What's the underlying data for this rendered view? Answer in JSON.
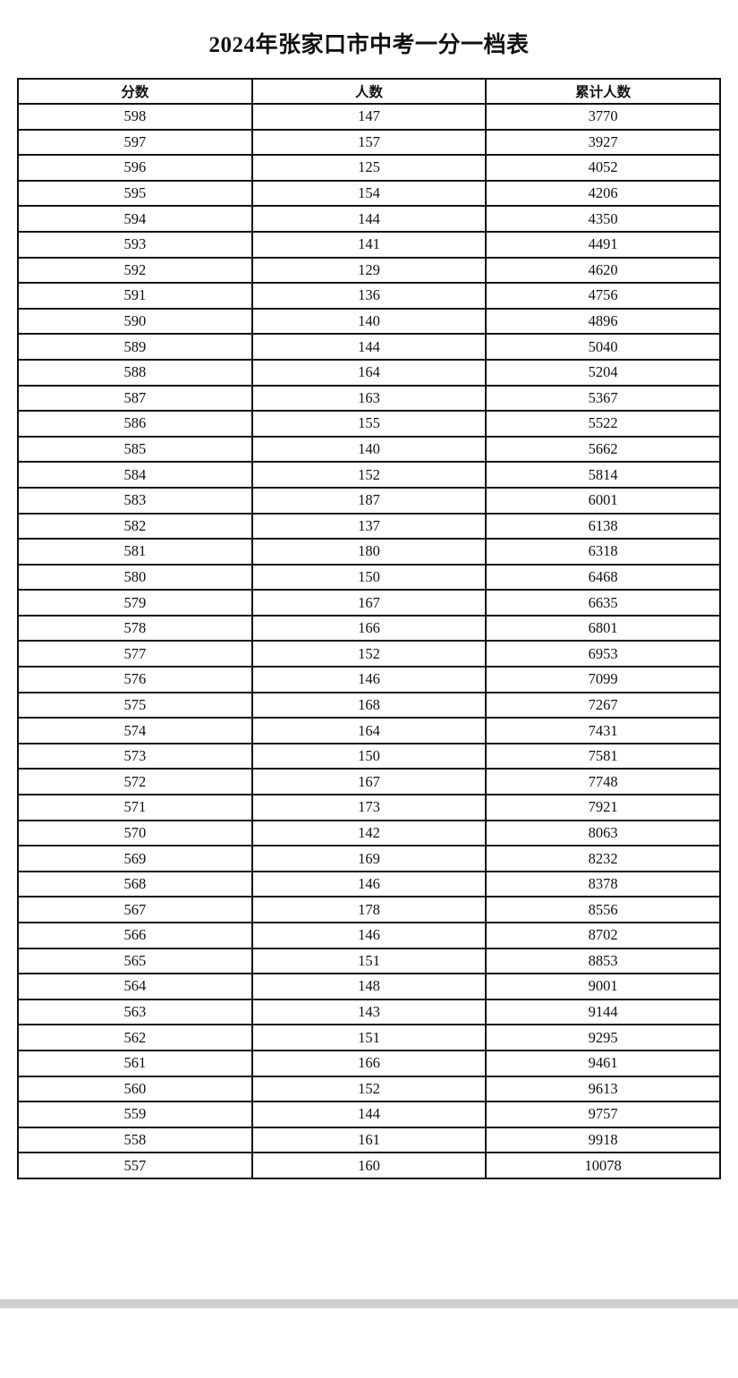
{
  "title": "2024年张家口市中考一分一档表",
  "table": {
    "headers": [
      "分数",
      "人数",
      "累计人数"
    ],
    "rows": [
      [
        "598",
        "147",
        "3770"
      ],
      [
        "597",
        "157",
        "3927"
      ],
      [
        "596",
        "125",
        "4052"
      ],
      [
        "595",
        "154",
        "4206"
      ],
      [
        "594",
        "144",
        "4350"
      ],
      [
        "593",
        "141",
        "4491"
      ],
      [
        "592",
        "129",
        "4620"
      ],
      [
        "591",
        "136",
        "4756"
      ],
      [
        "590",
        "140",
        "4896"
      ],
      [
        "589",
        "144",
        "5040"
      ],
      [
        "588",
        "164",
        "5204"
      ],
      [
        "587",
        "163",
        "5367"
      ],
      [
        "586",
        "155",
        "5522"
      ],
      [
        "585",
        "140",
        "5662"
      ],
      [
        "584",
        "152",
        "5814"
      ],
      [
        "583",
        "187",
        "6001"
      ],
      [
        "582",
        "137",
        "6138"
      ],
      [
        "581",
        "180",
        "6318"
      ],
      [
        "580",
        "150",
        "6468"
      ],
      [
        "579",
        "167",
        "6635"
      ],
      [
        "578",
        "166",
        "6801"
      ],
      [
        "577",
        "152",
        "6953"
      ],
      [
        "576",
        "146",
        "7099"
      ],
      [
        "575",
        "168",
        "7267"
      ],
      [
        "574",
        "164",
        "7431"
      ],
      [
        "573",
        "150",
        "7581"
      ],
      [
        "572",
        "167",
        "7748"
      ],
      [
        "571",
        "173",
        "7921"
      ],
      [
        "570",
        "142",
        "8063"
      ],
      [
        "569",
        "169",
        "8232"
      ],
      [
        "568",
        "146",
        "8378"
      ],
      [
        "567",
        "178",
        "8556"
      ],
      [
        "566",
        "146",
        "8702"
      ],
      [
        "565",
        "151",
        "8853"
      ],
      [
        "564",
        "148",
        "9001"
      ],
      [
        "563",
        "143",
        "9144"
      ],
      [
        "562",
        "151",
        "9295"
      ],
      [
        "561",
        "166",
        "9461"
      ],
      [
        "560",
        "152",
        "9613"
      ],
      [
        "559",
        "144",
        "9757"
      ],
      [
        "558",
        "161",
        "9918"
      ],
      [
        "557",
        "160",
        "10078"
      ]
    ]
  }
}
